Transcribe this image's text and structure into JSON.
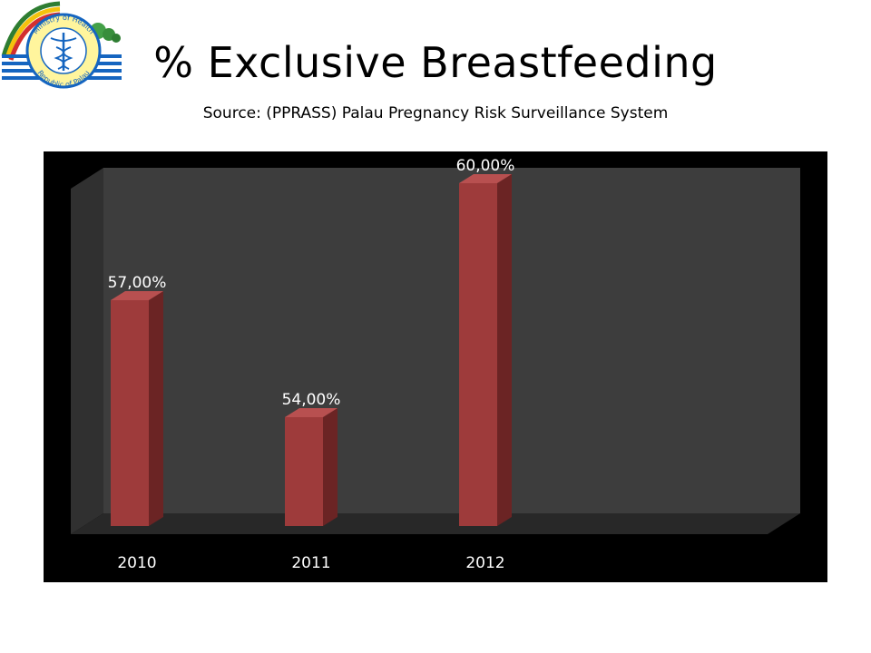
{
  "header": {
    "title": "% Exclusive Breastfeeding",
    "subtitle": "Source: (PPRASS) Palau Pregnancy Risk Surveillance System",
    "logo_text_top": "Ministry of Health",
    "logo_text_bottom": "Republic of Palau"
  },
  "colors": {
    "bar_front": "#9e3b3b",
    "bar_side": "#6b2424",
    "bar_top": "#b85050",
    "panel": "#000000",
    "back_wall": "#3d3d3d",
    "side_wall": "#303030",
    "floor": "#282828",
    "label": "#ffffff"
  },
  "chart_data": {
    "type": "bar",
    "three_d": true,
    "categories": [
      "2010",
      "2011",
      "2012"
    ],
    "values": [
      57,
      54,
      60
    ],
    "data_labels": [
      "57,00%",
      "54,00%",
      "60,00%"
    ],
    "title": "% Exclusive Breastfeeding",
    "subtitle": "Source: (PPRASS) Palau Pregnancy Risk Surveillance System",
    "xlabel": "",
    "ylabel": "",
    "ylim": [
      51,
      60
    ],
    "grid": false,
    "legend": "none"
  }
}
